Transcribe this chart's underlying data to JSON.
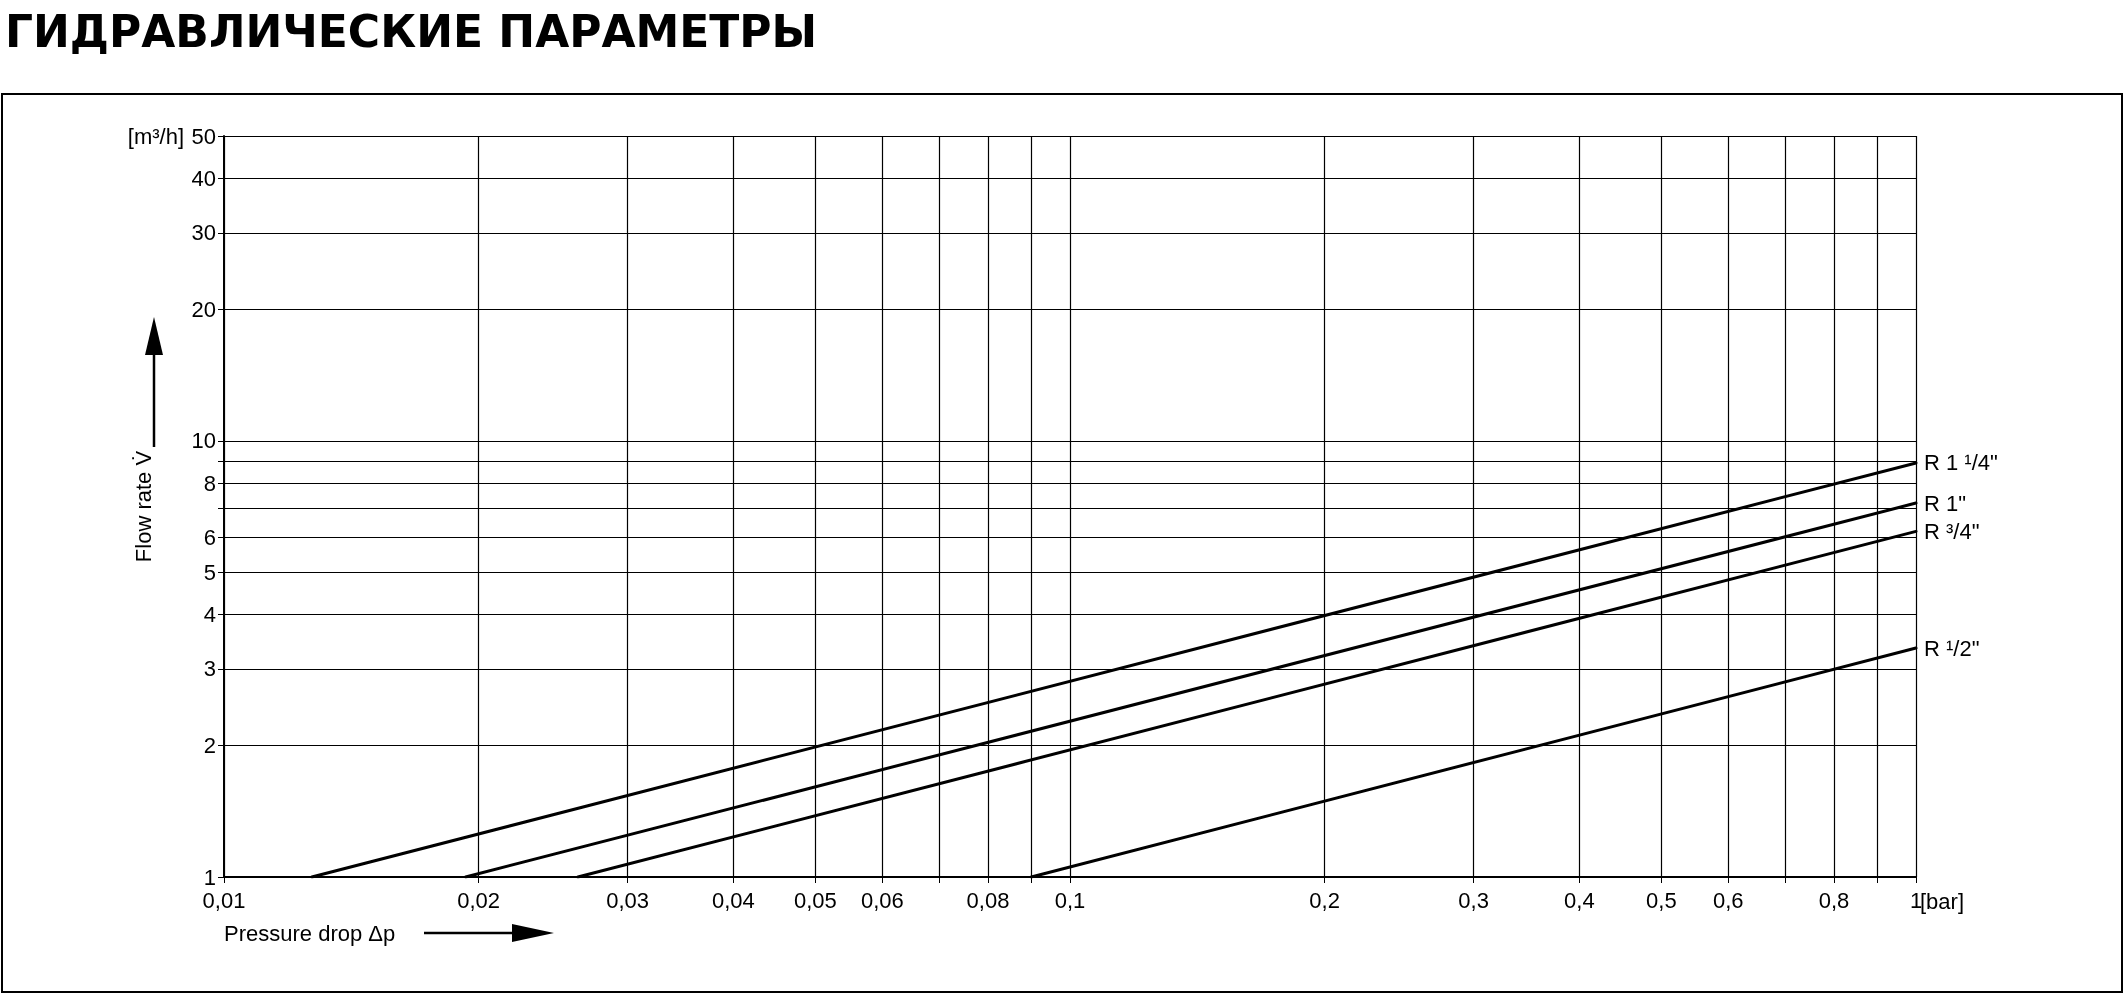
{
  "chart_data": {
    "type": "line",
    "title": "ГИДРАВЛИЧЕСКИЕ ПАРАМЕТРЫ",
    "xlabel": "Pressure drop Δp",
    "ylabel": "Flow rate V̇",
    "annotations": [
      "[m³/h]",
      "[bar]"
    ],
    "log": "xy",
    "grid": true,
    "legend": false,
    "marker": "none",
    "line_style": "solid",
    "xlim": [
      0.01,
      1
    ],
    "ylim": [
      1,
      50
    ],
    "xticks": [
      {
        "value": 0.01,
        "label": "0,01"
      },
      {
        "value": 0.02,
        "label": "0,02"
      },
      {
        "value": 0.03,
        "label": "0,03"
      },
      {
        "value": 0.04,
        "label": "0,04"
      },
      {
        "value": 0.05,
        "label": "0,05"
      },
      {
        "value": 0.06,
        "label": "0,06"
      },
      {
        "value": 0.07,
        "label": null
      },
      {
        "value": 0.08,
        "label": "0,08"
      },
      {
        "value": 0.09,
        "label": null
      },
      {
        "value": 0.1,
        "label": "0,1"
      },
      {
        "value": 0.2,
        "label": "0,2"
      },
      {
        "value": 0.3,
        "label": "0,3"
      },
      {
        "value": 0.4,
        "label": "0,4"
      },
      {
        "value": 0.5,
        "label": "0,5"
      },
      {
        "value": 0.6,
        "label": "0,6"
      },
      {
        "value": 0.7,
        "label": null
      },
      {
        "value": 0.8,
        "label": "0,8"
      },
      {
        "value": 0.9,
        "label": null
      },
      1
    ],
    "yticks": [
      1,
      2,
      3,
      4,
      5,
      6,
      {
        "value": 7,
        "label": null
      },
      8,
      {
        "value": 9,
        "label": null
      },
      10,
      20,
      30,
      40,
      50
    ],
    "series": [
      {
        "name": "R 1 ¹/4\"",
        "color": "#000000",
        "x": [
          0.0127,
          1
        ],
        "values": [
          1,
          8.9
        ]
      },
      {
        "name": "R 1\"",
        "color": "#000000",
        "x": [
          0.0193,
          1
        ],
        "values": [
          1,
          7.2
        ]
      },
      {
        "name": "R ³/4\"",
        "color": "#000000",
        "x": [
          0.0262,
          1
        ],
        "values": [
          1,
          6.2
        ]
      },
      {
        "name": "R ¹/2\"",
        "color": "#000000",
        "x": [
          0.09,
          1
        ],
        "values": [
          1,
          3.35
        ]
      }
    ]
  }
}
